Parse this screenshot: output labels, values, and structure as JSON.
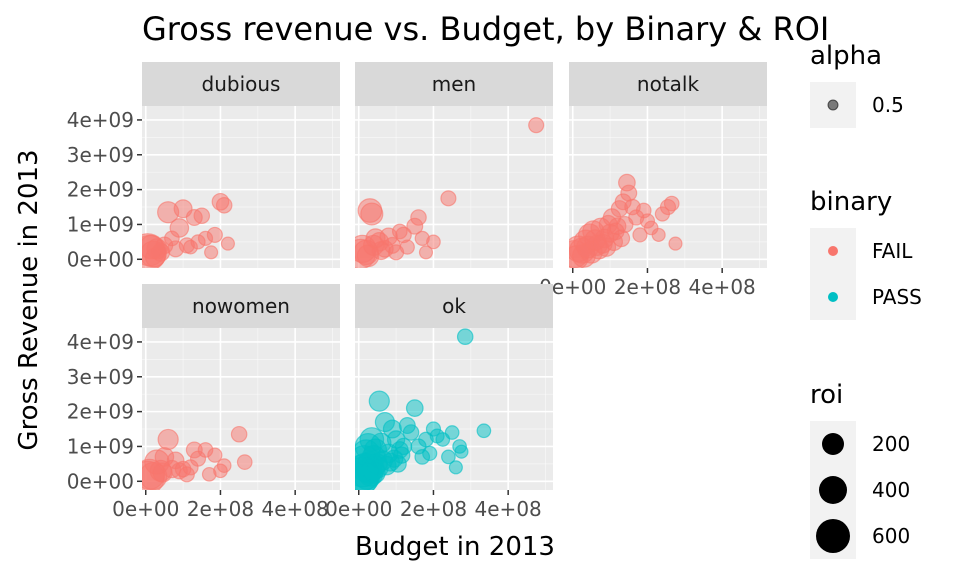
{
  "chart_data": {
    "type": "scatter",
    "title": "Gross revenue vs. Budget, by Binary & ROI",
    "xlabel": "Budget in 2013",
    "ylabel": "Gross Revenue in 2013",
    "xlim": [
      -10000000,
      520000000
    ],
    "ylim": [
      -250000000,
      4400000000
    ],
    "x_ticks": [
      0,
      200000000,
      400000000
    ],
    "x_tick_labels": [
      "0e+00",
      "2e+08",
      "4e+08"
    ],
    "y_ticks": [
      0,
      1000000000,
      2000000000,
      3000000000,
      4000000000
    ],
    "y_tick_labels": [
      "0e+00",
      "1e+09",
      "2e+09",
      "3e+09",
      "4e+09"
    ],
    "facet_by": "clean_test",
    "grid": true,
    "legend_position": "right",
    "colors": {
      "FAIL": "#F8766D",
      "PASS": "#00BFC4",
      "panel": "#EBEBEB",
      "strip": "#D9D9D9"
    },
    "panels": [
      {
        "facet": "dubious",
        "binary": "FAIL",
        "points": [
          [
            5000000,
            200000000,
            700
          ],
          [
            10000000,
            250000000,
            420
          ],
          [
            20000000,
            150000000,
            260
          ],
          [
            30000000,
            300000000,
            120
          ],
          [
            40000000,
            200000000,
            80
          ],
          [
            50000000,
            400000000,
            60
          ],
          [
            60000000,
            1350000000,
            140
          ],
          [
            80000000,
            300000000,
            50
          ],
          [
            90000000,
            900000000,
            90
          ],
          [
            100000000,
            1450000000,
            80
          ],
          [
            110000000,
            400000000,
            40
          ],
          [
            130000000,
            1200000000,
            50
          ],
          [
            150000000,
            1250000000,
            45
          ],
          [
            160000000,
            600000000,
            30
          ],
          [
            175000000,
            200000000,
            20
          ],
          [
            185000000,
            700000000,
            40
          ],
          [
            200000000,
            1650000000,
            60
          ],
          [
            210000000,
            1550000000,
            45
          ],
          [
            220000000,
            450000000,
            20
          ],
          [
            70000000,
            600000000,
            35
          ],
          [
            120000000,
            350000000,
            25
          ],
          [
            140000000,
            500000000,
            30
          ],
          [
            25000000,
            50000000,
            100
          ],
          [
            15000000,
            350000000,
            200
          ]
        ]
      },
      {
        "facet": "men",
        "binary": "FAIL",
        "points": [
          [
            5000000,
            150000000,
            380
          ],
          [
            10000000,
            300000000,
            300
          ],
          [
            20000000,
            200000000,
            220
          ],
          [
            30000000,
            1400000000,
            200
          ],
          [
            35000000,
            1300000000,
            160
          ],
          [
            40000000,
            400000000,
            120
          ],
          [
            55000000,
            500000000,
            90
          ],
          [
            70000000,
            300000000,
            60
          ],
          [
            80000000,
            650000000,
            70
          ],
          [
            100000000,
            200000000,
            40
          ],
          [
            120000000,
            700000000,
            45
          ],
          [
            150000000,
            950000000,
            50
          ],
          [
            160000000,
            1200000000,
            45
          ],
          [
            170000000,
            600000000,
            30
          ],
          [
            180000000,
            200000000,
            20
          ],
          [
            200000000,
            500000000,
            25
          ],
          [
            240000000,
            1750000000,
            40
          ],
          [
            475000000,
            3850000000,
            40
          ],
          [
            60000000,
            250000000,
            80
          ],
          [
            90000000,
            400000000,
            50
          ],
          [
            130000000,
            350000000,
            30
          ],
          [
            25000000,
            100000000,
            150
          ],
          [
            45000000,
            600000000,
            100
          ],
          [
            110000000,
            800000000,
            35
          ]
        ]
      },
      {
        "facet": "notalk",
        "binary": "FAIL",
        "points": [
          [
            5000000,
            150000000,
            300
          ],
          [
            15000000,
            300000000,
            260
          ],
          [
            25000000,
            250000000,
            240
          ],
          [
            35000000,
            500000000,
            200
          ],
          [
            45000000,
            700000000,
            160
          ],
          [
            55000000,
            800000000,
            140
          ],
          [
            65000000,
            400000000,
            120
          ],
          [
            75000000,
            900000000,
            110
          ],
          [
            85000000,
            600000000,
            90
          ],
          [
            95000000,
            1000000000,
            80
          ],
          [
            105000000,
            1200000000,
            70
          ],
          [
            115000000,
            800000000,
            60
          ],
          [
            125000000,
            1450000000,
            55
          ],
          [
            135000000,
            1650000000,
            50
          ],
          [
            145000000,
            2200000000,
            60
          ],
          [
            150000000,
            1900000000,
            50
          ],
          [
            160000000,
            1500000000,
            45
          ],
          [
            170000000,
            1200000000,
            40
          ],
          [
            180000000,
            700000000,
            30
          ],
          [
            190000000,
            1400000000,
            35
          ],
          [
            200000000,
            1100000000,
            30
          ],
          [
            210000000,
            900000000,
            25
          ],
          [
            230000000,
            700000000,
            20
          ],
          [
            255000000,
            1500000000,
            40
          ],
          [
            265000000,
            1600000000,
            35
          ],
          [
            275000000,
            450000000,
            20
          ],
          [
            240000000,
            1300000000,
            30
          ],
          [
            10000000,
            50000000,
            200
          ],
          [
            30000000,
            100000000,
            180
          ],
          [
            50000000,
            200000000,
            150
          ],
          [
            70000000,
            300000000,
            120
          ],
          [
            90000000,
            350000000,
            90
          ],
          [
            110000000,
            500000000,
            70
          ],
          [
            130000000,
            600000000,
            60
          ],
          [
            40000000,
            350000000,
            160
          ],
          [
            60000000,
            550000000,
            130
          ],
          [
            80000000,
            450000000,
            100
          ],
          [
            100000000,
            750000000,
            80
          ],
          [
            120000000,
            950000000,
            60
          ],
          [
            140000000,
            1000000000,
            50
          ]
        ]
      },
      {
        "facet": "nowomen",
        "binary": "FAIL",
        "points": [
          [
            5000000,
            100000000,
            520
          ],
          [
            10000000,
            200000000,
            400
          ],
          [
            20000000,
            150000000,
            300
          ],
          [
            30000000,
            550000000,
            220
          ],
          [
            40000000,
            300000000,
            140
          ],
          [
            45000000,
            250000000,
            100
          ],
          [
            60000000,
            1200000000,
            120
          ],
          [
            70000000,
            350000000,
            70
          ],
          [
            80000000,
            600000000,
            60
          ],
          [
            90000000,
            300000000,
            50
          ],
          [
            100000000,
            350000000,
            45
          ],
          [
            110000000,
            200000000,
            40
          ],
          [
            130000000,
            900000000,
            50
          ],
          [
            140000000,
            650000000,
            40
          ],
          [
            160000000,
            900000000,
            35
          ],
          [
            170000000,
            200000000,
            25
          ],
          [
            185000000,
            750000000,
            30
          ],
          [
            200000000,
            300000000,
            25
          ],
          [
            210000000,
            450000000,
            25
          ],
          [
            250000000,
            1350000000,
            45
          ],
          [
            265000000,
            550000000,
            35
          ],
          [
            50000000,
            700000000,
            90
          ],
          [
            120000000,
            400000000,
            40
          ]
        ]
      },
      {
        "facet": "ok",
        "binary": "PASS",
        "points": [
          [
            5000000,
            100000000,
            600
          ],
          [
            10000000,
            300000000,
            480
          ],
          [
            15000000,
            600000000,
            380
          ],
          [
            20000000,
            800000000,
            300
          ],
          [
            25000000,
            1000000000,
            260
          ],
          [
            30000000,
            500000000,
            220
          ],
          [
            35000000,
            1200000000,
            200
          ],
          [
            40000000,
            700000000,
            180
          ],
          [
            45000000,
            900000000,
            160
          ],
          [
            50000000,
            400000000,
            150
          ],
          [
            55000000,
            2300000000,
            120
          ],
          [
            60000000,
            1100000000,
            110
          ],
          [
            70000000,
            1700000000,
            100
          ],
          [
            80000000,
            800000000,
            90
          ],
          [
            90000000,
            1500000000,
            80
          ],
          [
            100000000,
            1200000000,
            70
          ],
          [
            110000000,
            900000000,
            60
          ],
          [
            120000000,
            1000000000,
            55
          ],
          [
            130000000,
            1600000000,
            50
          ],
          [
            140000000,
            1400000000,
            45
          ],
          [
            150000000,
            2100000000,
            60
          ],
          [
            160000000,
            1000000000,
            40
          ],
          [
            170000000,
            700000000,
            35
          ],
          [
            180000000,
            1200000000,
            35
          ],
          [
            190000000,
            800000000,
            30
          ],
          [
            200000000,
            1500000000,
            30
          ],
          [
            210000000,
            1300000000,
            28
          ],
          [
            225000000,
            1200000000,
            25
          ],
          [
            240000000,
            700000000,
            25
          ],
          [
            250000000,
            1400000000,
            25
          ],
          [
            260000000,
            400000000,
            20
          ],
          [
            275000000,
            850000000,
            20
          ],
          [
            285000000,
            4150000000,
            45
          ],
          [
            335000000,
            1450000000,
            25
          ],
          [
            270000000,
            1000000000,
            25
          ],
          [
            8000000,
            200000000,
            560
          ],
          [
            12000000,
            100000000,
            440
          ],
          [
            18000000,
            400000000,
            340
          ],
          [
            22000000,
            150000000,
            280
          ],
          [
            28000000,
            300000000,
            240
          ],
          [
            32000000,
            200000000,
            200
          ],
          [
            38000000,
            350000000,
            170
          ],
          [
            42000000,
            250000000,
            150
          ],
          [
            48000000,
            500000000,
            130
          ],
          [
            65000000,
            600000000,
            100
          ],
          [
            75000000,
            450000000,
            90
          ],
          [
            85000000,
            550000000,
            80
          ],
          [
            95000000,
            650000000,
            70
          ],
          [
            105000000,
            500000000,
            60
          ],
          [
            115000000,
            750000000,
            55
          ]
        ]
      }
    ],
    "legends": {
      "alpha": {
        "title": "alpha",
        "entries": [
          "0.5"
        ]
      },
      "binary": {
        "title": "binary",
        "entries": [
          "FAIL",
          "PASS"
        ]
      },
      "roi": {
        "title": "roi",
        "entries": [
          "200",
          "400",
          "600"
        ],
        "values": [
          200,
          400,
          600
        ]
      }
    }
  }
}
